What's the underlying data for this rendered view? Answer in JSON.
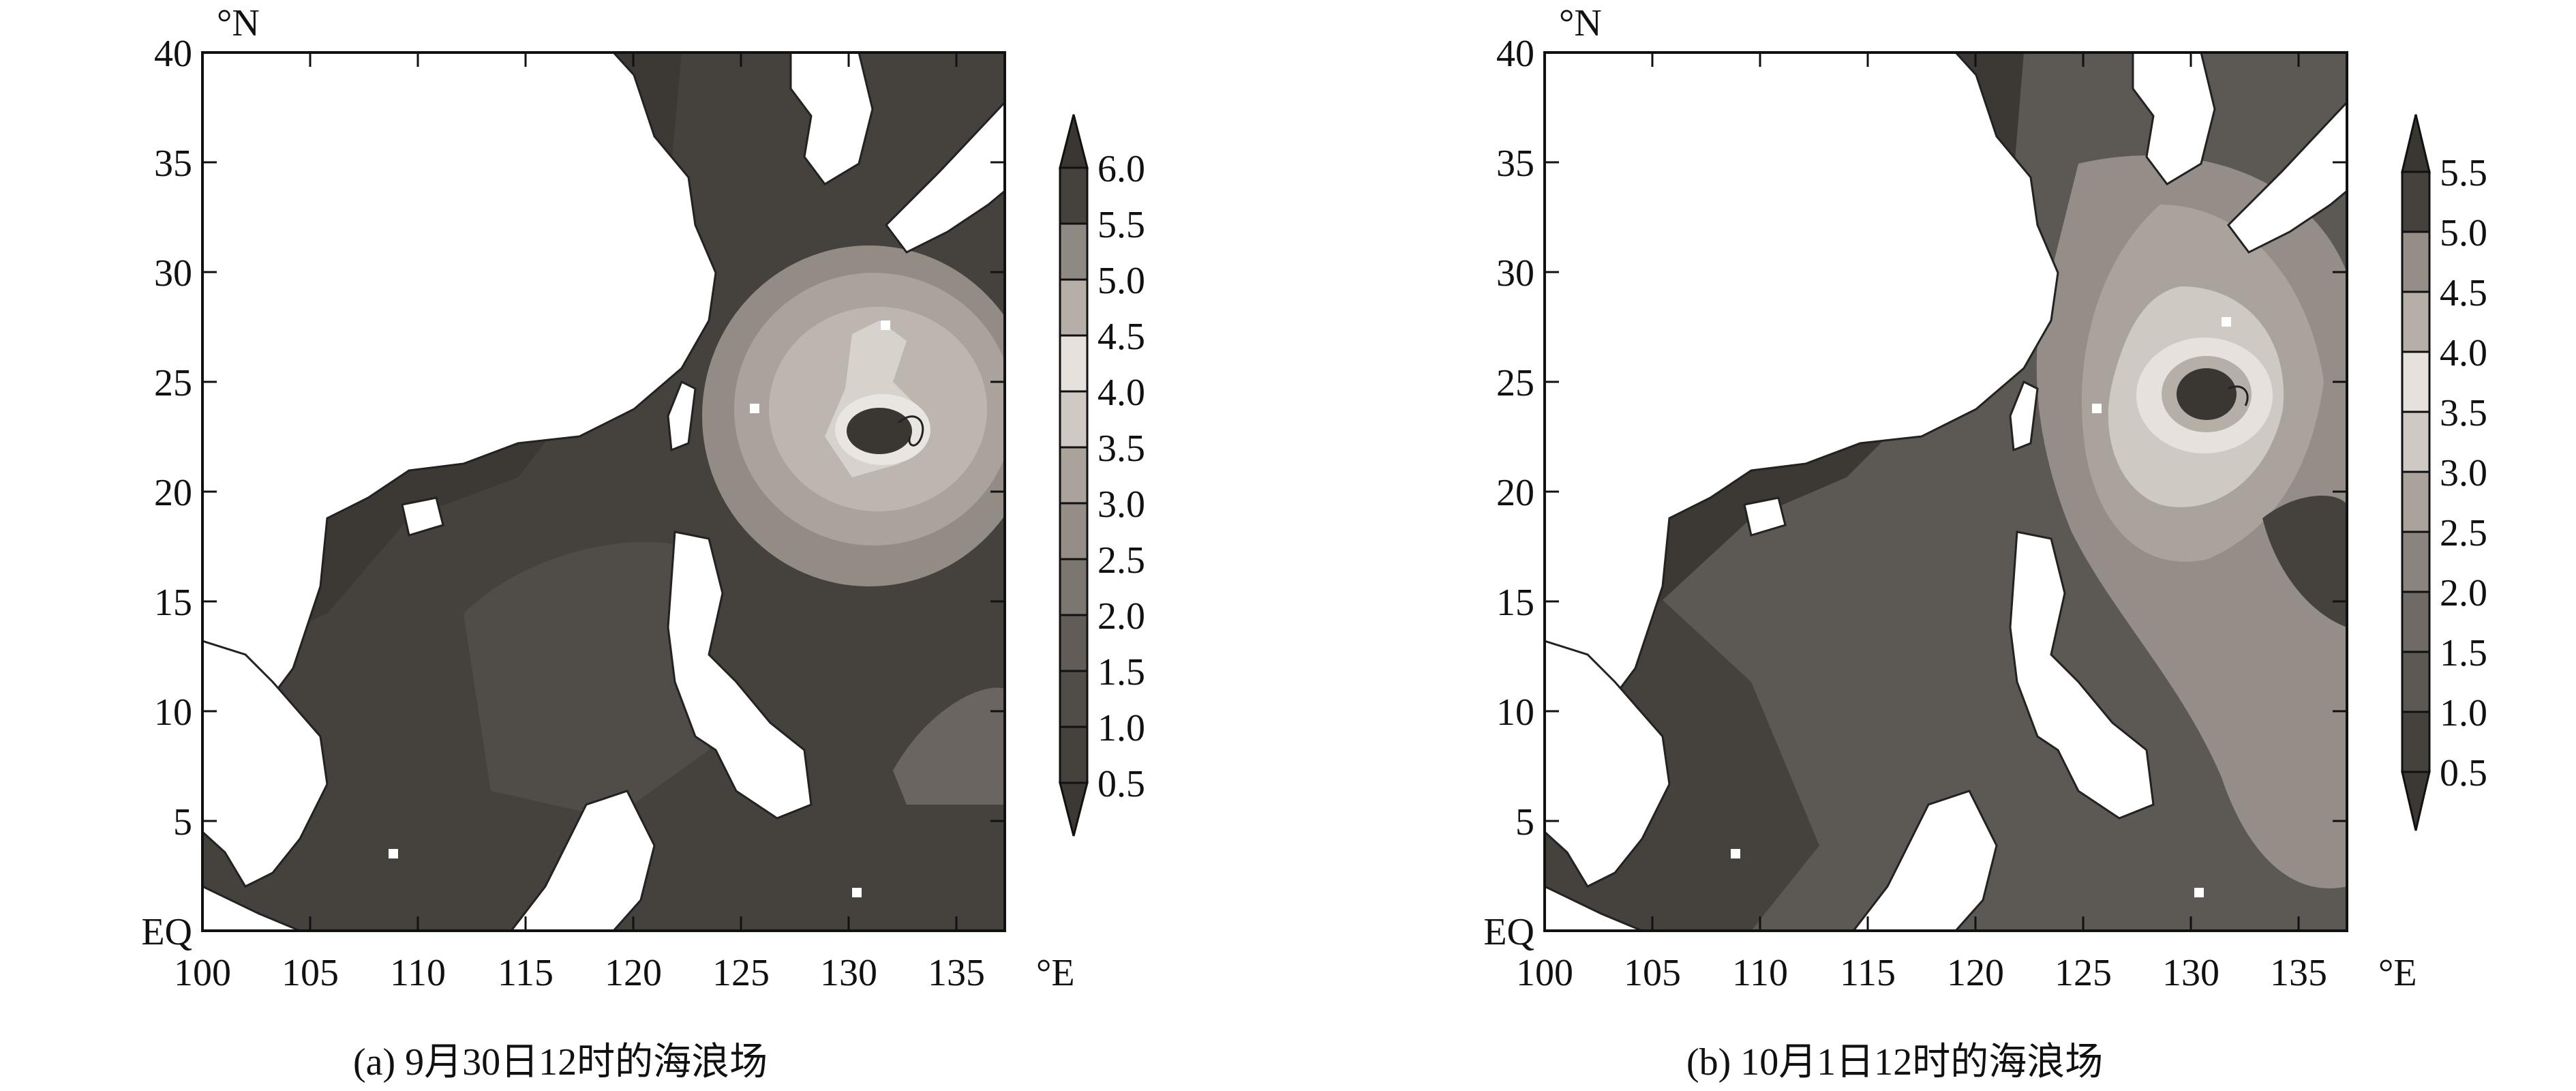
{
  "figure": {
    "panels": [
      {
        "id": "a",
        "caption": "(a) 9月30日12时的海浪场",
        "lat_unit": "°N",
        "lon_unit": "°E",
        "lat_ticks": [
          "40",
          "35",
          "30",
          "25",
          "20",
          "15",
          "10",
          "5",
          "EQ"
        ],
        "lon_ticks": [
          "100",
          "105",
          "110",
          "115",
          "120",
          "125",
          "130",
          "135"
        ],
        "colorbar_labels": [
          "6.0",
          "5.5",
          "5.0",
          "4.5",
          "4.0",
          "3.5",
          "3.0",
          "2.5",
          "2.0",
          "1.5",
          "1.0",
          "0.5"
        ]
      },
      {
        "id": "b",
        "caption": "(b) 10月1日12时的海浪场",
        "lat_unit": "°N",
        "lon_unit": "°E",
        "lat_ticks": [
          "40",
          "35",
          "30",
          "25",
          "20",
          "15",
          "10",
          "5",
          "EQ"
        ],
        "lon_ticks": [
          "100",
          "105",
          "110",
          "115",
          "120",
          "125",
          "130",
          "135"
        ],
        "colorbar_labels": [
          "5.5",
          "5.0",
          "4.5",
          "4.0",
          "3.5",
          "3.0",
          "2.5",
          "2.0",
          "1.5",
          "1.0",
          "0.5"
        ]
      }
    ]
  }
}
